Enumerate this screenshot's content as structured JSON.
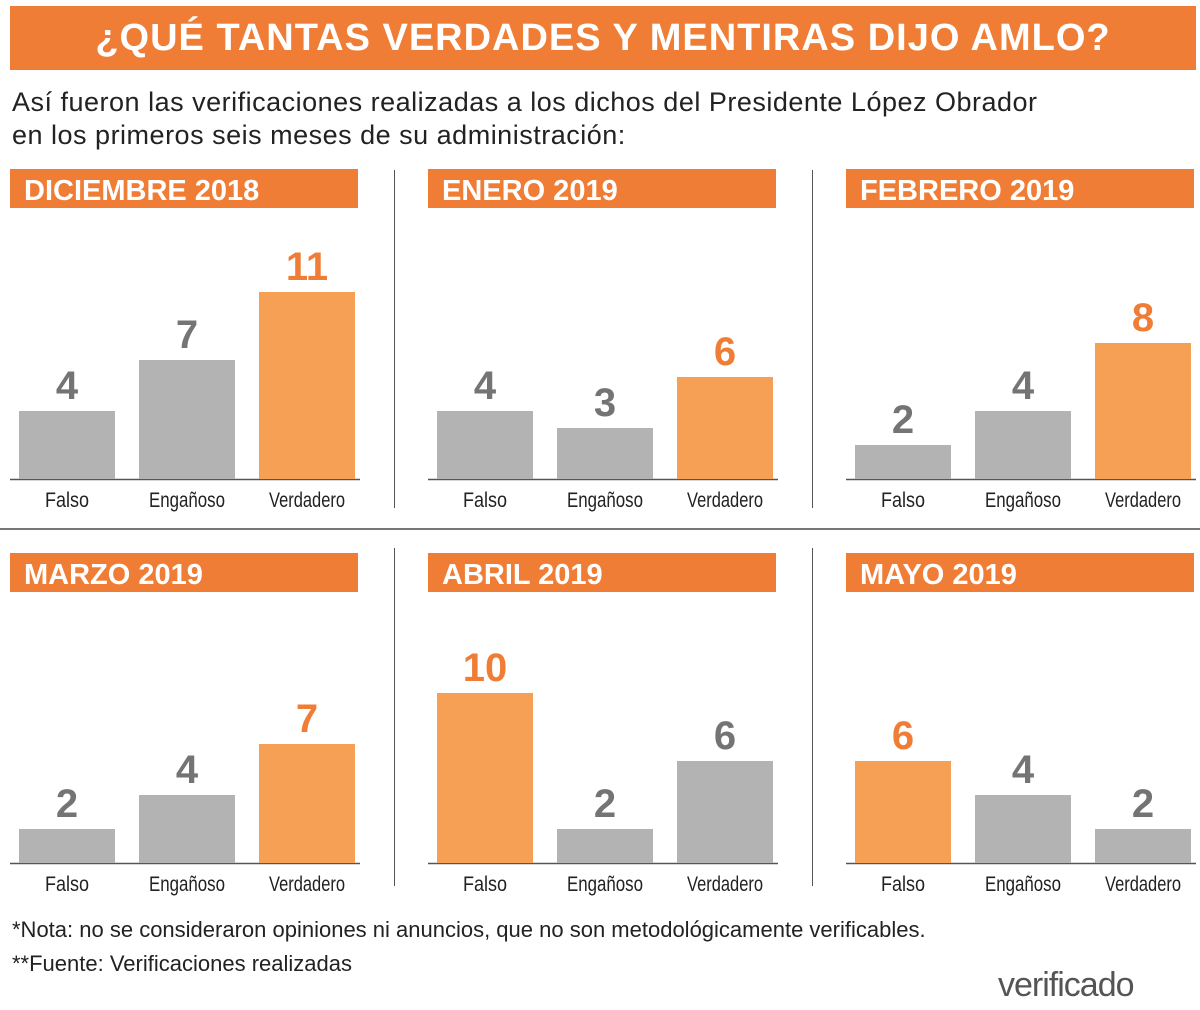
{
  "title": "¿QUÉ TANTAS VERDADES Y MENTIRAS DIJO AMLO?",
  "subtitle_lines": [
    "Así fueron las verificaciones realizadas a los dichos del Presidente López Obrador",
    "en los primeros seis meses de su administración:"
  ],
  "notes": [
    "*Nota: no se consideraron opiniones ni anuncios, que no son metodológicamente verificables.",
    "**Fuente: Verificaciones realizadas"
  ],
  "logo": "verificado",
  "colors": {
    "header": "#f07d35",
    "bar_highlight": "#f5a055",
    "bar_gray": "#b3b3b3",
    "value_gray": "#747474",
    "value_highlight": "#f07d35"
  },
  "chart_data": [
    {
      "type": "bar",
      "title": "DICIEMBRE 2018",
      "categories": [
        "Falso",
        "Engañoso",
        "Verdadero"
      ],
      "values": [
        4,
        7,
        11
      ],
      "highlight": "Verdadero"
    },
    {
      "type": "bar",
      "title": "ENERO 2019",
      "categories": [
        "Falso",
        "Engañoso",
        "Verdadero"
      ],
      "values": [
        4,
        3,
        6
      ],
      "highlight": "Verdadero"
    },
    {
      "type": "bar",
      "title": "FEBRERO 2019",
      "categories": [
        "Falso",
        "Engañoso",
        "Verdadero"
      ],
      "values": [
        2,
        4,
        8
      ],
      "highlight": "Verdadero"
    },
    {
      "type": "bar",
      "title": "MARZO 2019",
      "categories": [
        "Falso",
        "Engañoso",
        "Verdadero"
      ],
      "values": [
        2,
        4,
        7
      ],
      "highlight": "Verdadero"
    },
    {
      "type": "bar",
      "title": "ABRIL 2019",
      "categories": [
        "Falso",
        "Engañoso",
        "Verdadero"
      ],
      "values": [
        10,
        2,
        6
      ],
      "highlight": "Falso"
    },
    {
      "type": "bar",
      "title": "MAYO 2019",
      "categories": [
        "Falso",
        "Engañoso",
        "Verdadero"
      ],
      "values": [
        6,
        4,
        2
      ],
      "highlight": "Falso"
    }
  ]
}
